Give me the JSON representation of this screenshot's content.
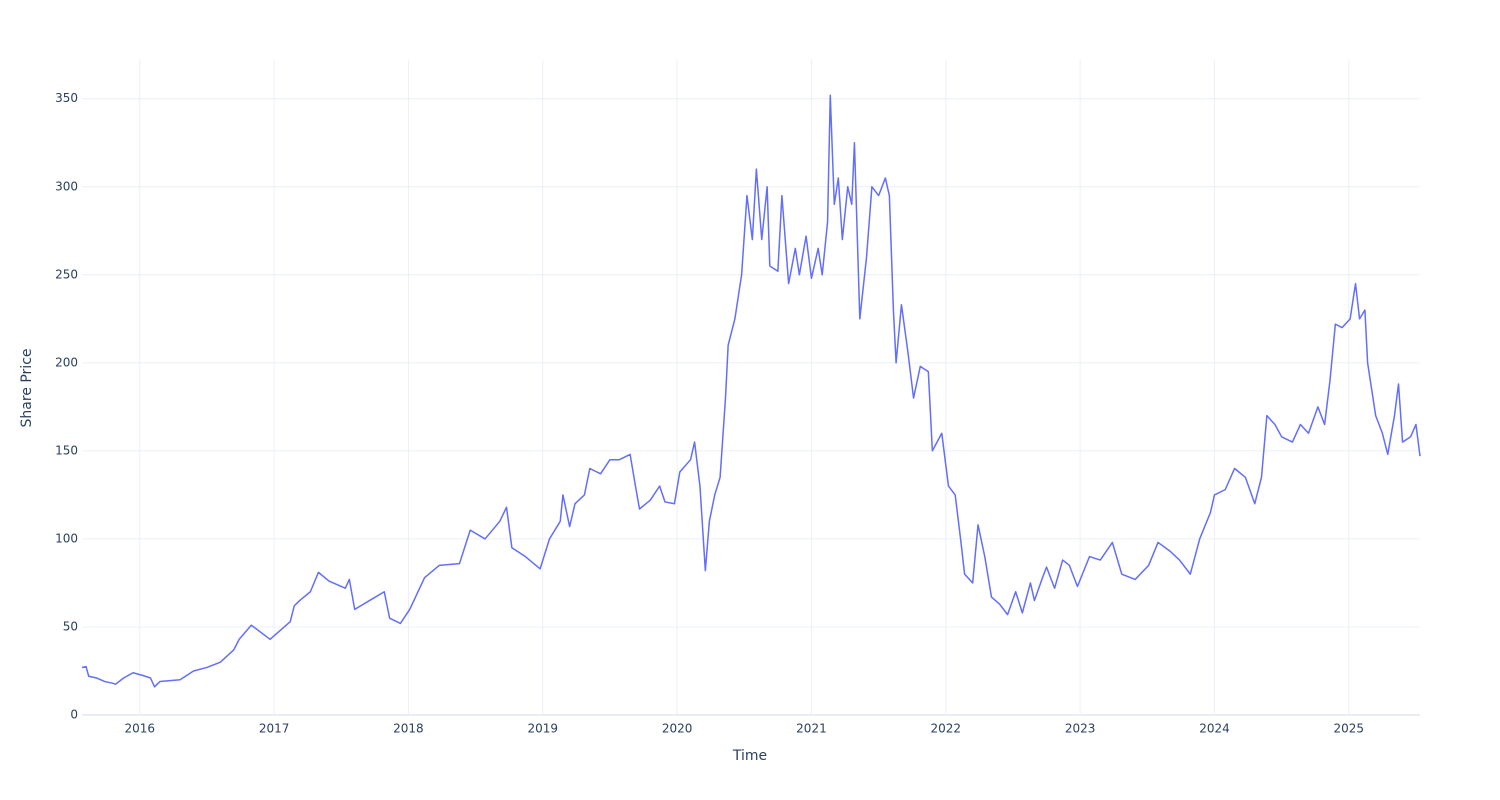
{
  "chart_data": {
    "type": "line",
    "x_label": "Time",
    "y_label": "Share Price",
    "x": [
      2015.57,
      2015.6,
      2015.62,
      2015.68,
      2015.74,
      2015.8,
      2015.82,
      2015.88,
      2015.95,
      2016.02,
      2016.08,
      2016.11,
      2016.15,
      2016.3,
      2016.4,
      2016.5,
      2016.6,
      2016.7,
      2016.74,
      2016.83,
      2016.97,
      2017.12,
      2017.15,
      2017.19,
      2017.27,
      2017.33,
      2017.41,
      2017.53,
      2017.56,
      2017.6,
      2017.71,
      2017.82,
      2017.86,
      2017.94,
      2018.01,
      2018.12,
      2018.23,
      2018.38,
      2018.46,
      2018.57,
      2018.68,
      2018.73,
      2018.77,
      2018.87,
      2018.98,
      2019.05,
      2019.13,
      2019.15,
      2019.2,
      2019.24,
      2019.31,
      2019.35,
      2019.43,
      2019.5,
      2019.57,
      2019.65,
      2019.69,
      2019.72,
      2019.8,
      2019.87,
      2019.91,
      2019.98,
      2020.02,
      2020.1,
      2020.13,
      2020.17,
      2020.21,
      2020.24,
      2020.28,
      2020.32,
      2020.36,
      2020.38,
      2020.43,
      2020.48,
      2020.52,
      2020.56,
      2020.59,
      2020.63,
      2020.67,
      2020.69,
      2020.75,
      2020.78,
      2020.83,
      2020.88,
      2020.91,
      2020.96,
      2021.0,
      2021.05,
      2021.08,
      2021.12,
      2021.14,
      2021.17,
      2021.2,
      2021.23,
      2021.27,
      2021.3,
      2021.32,
      2021.36,
      2021.41,
      2021.45,
      2021.5,
      2021.55,
      2021.58,
      2021.61,
      2021.63,
      2021.67,
      2021.72,
      2021.76,
      2021.81,
      2021.87,
      2021.9,
      2021.97,
      2022.02,
      2022.07,
      2022.11,
      2022.14,
      2022.2,
      2022.24,
      2022.29,
      2022.34,
      2022.4,
      2022.46,
      2022.52,
      2022.57,
      2022.63,
      2022.66,
      2022.72,
      2022.75,
      2022.81,
      2022.87,
      2022.92,
      2022.98,
      2023.07,
      2023.15,
      2023.24,
      2023.31,
      2023.41,
      2023.51,
      2023.58,
      2023.67,
      2023.74,
      2023.82,
      2023.89,
      2023.97,
      2024.0,
      2024.08,
      2024.15,
      2024.23,
      2024.3,
      2024.35,
      2024.39,
      2024.45,
      2024.5,
      2024.58,
      2024.64,
      2024.7,
      2024.77,
      2024.82,
      2024.86,
      2024.9,
      2024.95,
      2025.01,
      2025.05,
      2025.08,
      2025.12,
      2025.14,
      2025.2,
      2025.25,
      2025.29,
      2025.34,
      2025.37,
      2025.4,
      2025.46,
      2025.5,
      2025.53
    ],
    "series": [
      {
        "color": "#636efa",
        "values": [
          27,
          27.5,
          22,
          21,
          19,
          18,
          17.5,
          21,
          24,
          22.5,
          21,
          16,
          19,
          20,
          25,
          27,
          30,
          37,
          43,
          51,
          43,
          53,
          62,
          65,
          70,
          81,
          76,
          72,
          77,
          60,
          65,
          70,
          55,
          52,
          60,
          78,
          85,
          86,
          105,
          100,
          110,
          118,
          95,
          90,
          83,
          100,
          110,
          125,
          107,
          120,
          125,
          140,
          137,
          145,
          145,
          148,
          130,
          117,
          122,
          130,
          121,
          120,
          138,
          145,
          155,
          130,
          82,
          110,
          125,
          135,
          180,
          210,
          225,
          250,
          295,
          270,
          310,
          270,
          300,
          255,
          252,
          295,
          245,
          265,
          250,
          272,
          248,
          265,
          250,
          280,
          352,
          290,
          305,
          270,
          300,
          290,
          325,
          225,
          260,
          300,
          295,
          305,
          295,
          230,
          200,
          233,
          205,
          180,
          198,
          195,
          150,
          160,
          130,
          125,
          100,
          80,
          75,
          108,
          90,
          67,
          63,
          57,
          70,
          58,
          75,
          65,
          78,
          84,
          72,
          88,
          85,
          73,
          90,
          88,
          98,
          80,
          77,
          85,
          98,
          93,
          88,
          80,
          100,
          115,
          125,
          128,
          140,
          135,
          120,
          135,
          170,
          165,
          158,
          155,
          165,
          160,
          175,
          165,
          190,
          222,
          220,
          225,
          245,
          225,
          230,
          200,
          170,
          160,
          148,
          170,
          188,
          155,
          158,
          165,
          147
        ]
      }
    ],
    "xlim": [
      2015.57,
      2025.53
    ],
    "xticks": [
      2016,
      2017,
      2018,
      2019,
      2020,
      2021,
      2022,
      2023,
      2024,
      2025
    ],
    "ylim": [
      0,
      372
    ],
    "yticks": [
      0,
      50,
      100,
      150,
      200,
      250,
      300,
      350
    ],
    "grid": true
  }
}
